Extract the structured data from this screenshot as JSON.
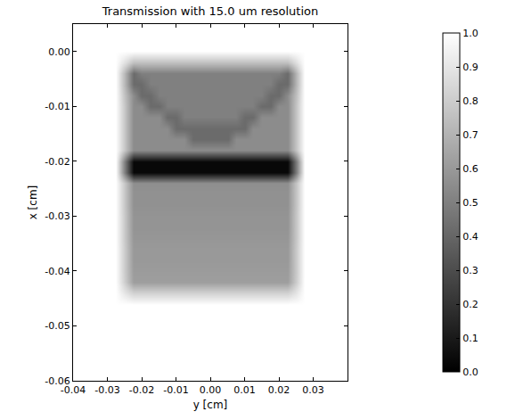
{
  "chart_data": {
    "type": "heatmap",
    "title": "Transmission with 15.0 um resolution",
    "x_label": "y [cm]",
    "y_label": "x [cm]",
    "x": [
      -0.03,
      -0.0275,
      -0.025,
      -0.0225,
      -0.02,
      -0.0175,
      -0.015,
      -0.0125,
      -0.01,
      -0.0075,
      -0.005,
      -0.0025,
      0,
      0.0025,
      0.005,
      0.0075,
      0.01,
      0.0125,
      0.015,
      0.0175,
      0.02,
      0.0225,
      0.025,
      0.0275,
      0.03
    ],
    "y": [
      -0.048,
      -0.046,
      -0.044,
      -0.042,
      -0.04,
      -0.038,
      -0.036,
      -0.034,
      -0.032,
      -0.03,
      -0.028,
      -0.026,
      -0.024,
      -0.022,
      -0.02,
      -0.018,
      -0.016,
      -0.014,
      -0.012,
      -0.01,
      -0.008,
      -0.006,
      -0.004,
      -0.002,
      0,
      0.002
    ],
    "cells": [
      [
        1,
        1,
        1,
        1,
        1,
        1,
        1,
        1,
        1,
        1,
        1,
        1,
        1,
        1,
        1,
        1,
        1,
        1,
        1,
        1,
        1,
        1,
        1,
        1,
        1
      ],
      [
        1,
        1,
        1,
        1,
        1,
        1,
        1,
        1,
        1,
        1,
        1,
        1,
        1,
        1,
        1,
        1,
        1,
        1,
        1,
        1,
        1,
        1,
        1,
        1,
        1
      ],
      [
        1,
        1,
        0.9,
        0.82,
        0.82,
        0.82,
        0.82,
        0.82,
        0.82,
        0.82,
        0.82,
        0.82,
        0.82,
        0.82,
        0.82,
        0.82,
        0.82,
        0.82,
        0.82,
        0.82,
        0.82,
        0.82,
        0.9,
        1,
        1
      ],
      [
        1,
        1,
        0.81,
        0.62,
        0.62,
        0.62,
        0.62,
        0.62,
        0.62,
        0.62,
        0.62,
        0.62,
        0.62,
        0.62,
        0.62,
        0.62,
        0.62,
        0.62,
        0.62,
        0.62,
        0.62,
        0.62,
        0.81,
        1,
        1
      ],
      [
        1,
        1,
        0.8,
        0.61,
        0.61,
        0.61,
        0.61,
        0.61,
        0.61,
        0.61,
        0.61,
        0.61,
        0.61,
        0.61,
        0.61,
        0.61,
        0.61,
        0.61,
        0.61,
        0.61,
        0.61,
        0.61,
        0.8,
        1,
        1
      ],
      [
        1,
        1,
        0.8,
        0.6,
        0.6,
        0.6,
        0.6,
        0.6,
        0.6,
        0.6,
        0.6,
        0.6,
        0.6,
        0.6,
        0.6,
        0.6,
        0.6,
        0.6,
        0.6,
        0.6,
        0.6,
        0.6,
        0.8,
        1,
        1
      ],
      [
        1,
        1,
        0.8,
        0.6,
        0.6,
        0.6,
        0.6,
        0.6,
        0.6,
        0.6,
        0.6,
        0.6,
        0.6,
        0.6,
        0.6,
        0.6,
        0.6,
        0.6,
        0.6,
        0.6,
        0.6,
        0.6,
        0.8,
        1,
        1
      ],
      [
        1,
        1,
        0.79,
        0.59,
        0.59,
        0.59,
        0.59,
        0.59,
        0.59,
        0.59,
        0.59,
        0.59,
        0.59,
        0.59,
        0.59,
        0.59,
        0.59,
        0.59,
        0.59,
        0.59,
        0.59,
        0.59,
        0.79,
        1,
        1
      ],
      [
        1,
        1,
        0.79,
        0.58,
        0.58,
        0.58,
        0.58,
        0.58,
        0.58,
        0.58,
        0.58,
        0.58,
        0.58,
        0.58,
        0.58,
        0.58,
        0.58,
        0.58,
        0.58,
        0.58,
        0.58,
        0.58,
        0.79,
        1,
        1
      ],
      [
        1,
        1,
        0.79,
        0.58,
        0.58,
        0.58,
        0.58,
        0.58,
        0.58,
        0.58,
        0.58,
        0.58,
        0.58,
        0.58,
        0.58,
        0.58,
        0.58,
        0.58,
        0.58,
        0.58,
        0.58,
        0.58,
        0.79,
        1,
        1
      ],
      [
        1,
        1,
        0.78,
        0.57,
        0.57,
        0.57,
        0.57,
        0.57,
        0.57,
        0.57,
        0.57,
        0.57,
        0.57,
        0.57,
        0.57,
        0.57,
        0.57,
        0.57,
        0.57,
        0.57,
        0.57,
        0.57,
        0.78,
        1,
        1
      ],
      [
        1,
        1,
        0.78,
        0.57,
        0.57,
        0.57,
        0.57,
        0.57,
        0.57,
        0.57,
        0.57,
        0.57,
        0.57,
        0.57,
        0.57,
        0.57,
        0.57,
        0.57,
        0.57,
        0.57,
        0.57,
        0.57,
        0.78,
        1,
        1
      ],
      [
        1,
        1,
        0.78,
        0.56,
        0.56,
        0.56,
        0.56,
        0.56,
        0.56,
        0.56,
        0.56,
        0.56,
        0.56,
        0.56,
        0.56,
        0.56,
        0.56,
        0.56,
        0.56,
        0.56,
        0.56,
        0.56,
        0.78,
        1,
        1
      ],
      [
        1,
        1,
        0.5,
        0.03,
        0.03,
        0.03,
        0.03,
        0.03,
        0.03,
        0.03,
        0.03,
        0.03,
        0.03,
        0.03,
        0.03,
        0.03,
        0.03,
        0.03,
        0.03,
        0.03,
        0.03,
        0.03,
        0.5,
        1,
        1
      ],
      [
        1,
        1,
        0.5,
        0.03,
        0.03,
        0.03,
        0.03,
        0.03,
        0.03,
        0.03,
        0.03,
        0.03,
        0.03,
        0.03,
        0.03,
        0.03,
        0.03,
        0.03,
        0.03,
        0.03,
        0.03,
        0.03,
        0.5,
        1,
        1
      ],
      [
        1,
        1,
        0.78,
        0.55,
        0.55,
        0.55,
        0.55,
        0.55,
        0.55,
        0.55,
        0.55,
        0.55,
        0.55,
        0.55,
        0.55,
        0.55,
        0.55,
        0.55,
        0.55,
        0.55,
        0.55,
        0.55,
        0.78,
        1,
        1
      ],
      [
        1,
        1,
        0.78,
        0.55,
        0.55,
        0.55,
        0.55,
        0.55,
        0.55,
        0.55,
        0.42,
        0.42,
        0.42,
        0.42,
        0.42,
        0.55,
        0.55,
        0.55,
        0.55,
        0.55,
        0.55,
        0.55,
        0.78,
        1,
        1
      ],
      [
        1,
        1,
        0.78,
        0.55,
        0.55,
        0.55,
        0.55,
        0.55,
        0.42,
        0.42,
        0.42,
        0.42,
        0.42,
        0.42,
        0.42,
        0.42,
        0.42,
        0.55,
        0.55,
        0.55,
        0.55,
        0.55,
        0.78,
        1,
        1
      ],
      [
        1,
        1,
        0.78,
        0.55,
        0.55,
        0.55,
        0.55,
        0.42,
        0.42,
        0.5,
        0.5,
        0.5,
        0.5,
        0.5,
        0.5,
        0.5,
        0.42,
        0.42,
        0.55,
        0.55,
        0.55,
        0.55,
        0.78,
        1,
        1
      ],
      [
        1,
        1,
        0.78,
        0.55,
        0.55,
        0.42,
        0.42,
        0.5,
        0.5,
        0.5,
        0.5,
        0.5,
        0.5,
        0.5,
        0.5,
        0.5,
        0.5,
        0.5,
        0.42,
        0.42,
        0.55,
        0.55,
        0.78,
        1,
        1
      ],
      [
        1,
        1,
        0.76,
        0.55,
        0.42,
        0.42,
        0.5,
        0.5,
        0.5,
        0.5,
        0.5,
        0.5,
        0.5,
        0.5,
        0.5,
        0.5,
        0.5,
        0.5,
        0.5,
        0.42,
        0.42,
        0.55,
        0.76,
        1,
        1
      ],
      [
        1,
        1,
        0.72,
        0.42,
        0.42,
        0.5,
        0.5,
        0.5,
        0.5,
        0.5,
        0.5,
        0.5,
        0.5,
        0.5,
        0.5,
        0.5,
        0.5,
        0.5,
        0.5,
        0.5,
        0.42,
        0.42,
        0.72,
        1,
        1
      ],
      [
        1,
        1,
        0.72,
        0.42,
        0.5,
        0.5,
        0.5,
        0.5,
        0.5,
        0.5,
        0.5,
        0.5,
        0.5,
        0.5,
        0.5,
        0.5,
        0.5,
        0.5,
        0.5,
        0.5,
        0.5,
        0.42,
        0.72,
        1,
        1
      ],
      [
        1,
        1,
        0.88,
        0.75,
        0.75,
        0.75,
        0.75,
        0.75,
        0.75,
        0.75,
        0.75,
        0.75,
        0.75,
        0.75,
        0.75,
        0.75,
        0.75,
        0.75,
        0.75,
        0.75,
        0.75,
        0.75,
        0.88,
        1,
        1
      ],
      [
        1,
        1,
        1,
        1,
        1,
        1,
        1,
        1,
        1,
        1,
        1,
        1,
        1,
        1,
        1,
        1,
        1,
        1,
        1,
        1,
        1,
        1,
        1,
        1,
        1
      ],
      [
        1,
        1,
        1,
        1,
        1,
        1,
        1,
        1,
        1,
        1,
        1,
        1,
        1,
        1,
        1,
        1,
        1,
        1,
        1,
        1,
        1,
        1,
        1,
        1,
        1
      ]
    ],
    "xlim": [
      -0.04,
      0.04
    ],
    "ylim": [
      -0.06,
      0.005
    ],
    "xticks": [
      -0.04,
      -0.03,
      -0.02,
      -0.01,
      {
        "value": 0,
        "label": "0.00"
      },
      0.01,
      0.02,
      0.03
    ],
    "yticks": [
      -0.06,
      -0.05,
      -0.04,
      -0.03,
      -0.02,
      -0.01,
      {
        "value": 0,
        "label": "0.00"
      }
    ],
    "colorbar": {
      "range": [
        0,
        1
      ],
      "ticks": [
        {
          "value": 0,
          "label": "0.0"
        },
        0.1,
        0.2,
        0.3,
        0.4,
        0.5,
        0.6,
        0.7,
        0.8,
        0.9,
        {
          "value": 1,
          "label": "1.0"
        }
      ]
    }
  }
}
